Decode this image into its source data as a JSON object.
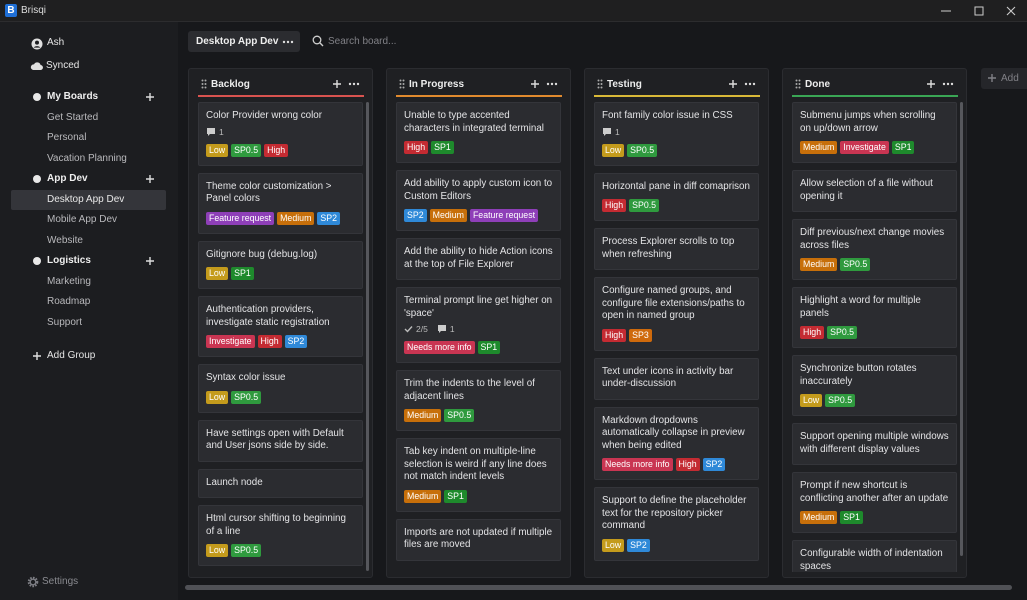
{
  "app": {
    "logo": "B",
    "title": "Brisqi"
  },
  "sidebar": {
    "user": "Ash",
    "sync": "Synced",
    "groups": [
      {
        "name": "My Boards",
        "boards": [
          {
            "label": "Get Started"
          },
          {
            "label": "Personal"
          },
          {
            "label": "Vacation Planning"
          }
        ]
      },
      {
        "name": "App Dev",
        "boards": [
          {
            "label": "Desktop App Dev",
            "active": true
          },
          {
            "label": "Mobile App Dev"
          },
          {
            "label": "Website"
          }
        ]
      },
      {
        "name": "Logistics",
        "boards": [
          {
            "label": "Marketing"
          },
          {
            "label": "Roadmap"
          },
          {
            "label": "Support"
          }
        ]
      }
    ],
    "add_group": "Add Group",
    "settings": "Settings"
  },
  "header": {
    "board": "Desktop App Dev",
    "search_placeholder": "Search board..."
  },
  "add_list": "Add",
  "columns": [
    {
      "title": "Backlog",
      "color": "#d9534f",
      "cards": [
        {
          "title": "Color Provider wrong color",
          "comments": "1",
          "tags": [
            {
              "label": "Low",
              "color": "#c49b1c"
            },
            {
              "label": "SP0.5",
              "color": "#2f9a3e"
            },
            {
              "label": "High",
              "color": "#c42b32"
            }
          ]
        },
        {
          "title": "Theme color customization > Panel colors",
          "tags": [
            {
              "label": "Feature request",
              "color": "#8e3fb8"
            },
            {
              "label": "Medium",
              "color": "#c76f0a"
            },
            {
              "label": "SP2",
              "color": "#2f89d8"
            }
          ]
        },
        {
          "title": "Gitignore bug (debug.log)",
          "tags": [
            {
              "label": "Low",
              "color": "#c49b1c"
            },
            {
              "label": "SP1",
              "color": "#1e8a2c"
            }
          ]
        },
        {
          "title": "Authentication providers, investigate static registration",
          "tags": [
            {
              "label": "Investigate",
              "color": "#c93552"
            },
            {
              "label": "High",
              "color": "#c42b32"
            },
            {
              "label": "SP2",
              "color": "#2f89d8"
            }
          ]
        },
        {
          "title": "Syntax color issue",
          "tags": [
            {
              "label": "Low",
              "color": "#c49b1c"
            },
            {
              "label": "SP0.5",
              "color": "#2f9a3e"
            }
          ]
        },
        {
          "title": "Have settings open with Default and User jsons side by side."
        },
        {
          "title": "Launch node"
        },
        {
          "title": "Html cursor shifting to beginning of a line",
          "tags": [
            {
              "label": "Low",
              "color": "#c49b1c"
            },
            {
              "label": "SP0.5",
              "color": "#2f9a3e"
            }
          ]
        }
      ]
    },
    {
      "title": "In Progress",
      "color": "#e08a2e",
      "cards": [
        {
          "title": "Unable to type accented characters in integrated terminal",
          "tags": [
            {
              "label": "High",
              "color": "#c42b32"
            },
            {
              "label": "SP1",
              "color": "#1e8a2c"
            }
          ]
        },
        {
          "title": "Add ability to apply custom icon to Custom Editors",
          "tags": [
            {
              "label": "SP2",
              "color": "#2f89d8"
            },
            {
              "label": "Medium",
              "color": "#c76f0a"
            },
            {
              "label": "Feature request",
              "color": "#8e3fb8"
            }
          ]
        },
        {
          "title": "Add the ability to hide Action icons at the top of File Explorer"
        },
        {
          "title": "Terminal prompt line get higher on 'space'",
          "checklist": "2/5",
          "comments": "1",
          "tags": [
            {
              "label": "Needs more info",
              "color": "#c93552"
            },
            {
              "label": "SP1",
              "color": "#1e8a2c"
            }
          ]
        },
        {
          "title": "Trim the indents to the level of adjacent lines",
          "tags": [
            {
              "label": "Medium",
              "color": "#c76f0a"
            },
            {
              "label": "SP0.5",
              "color": "#2f9a3e"
            }
          ]
        },
        {
          "title": "Tab key indent on multiple-line selection is weird if any line does not match indent levels",
          "tags": [
            {
              "label": "Medium",
              "color": "#c76f0a"
            },
            {
              "label": "SP1",
              "color": "#1e8a2c"
            }
          ]
        },
        {
          "title": "Imports are not updated if multiple files are moved"
        }
      ]
    },
    {
      "title": "Testing",
      "color": "#d9b938",
      "cards": [
        {
          "title": "Font family color issue in CSS",
          "comments": "1",
          "tags": [
            {
              "label": "Low",
              "color": "#c49b1c"
            },
            {
              "label": "SP0.5",
              "color": "#2f9a3e"
            }
          ]
        },
        {
          "title": "Horizontal pane in diff comaprison",
          "tags": [
            {
              "label": "High",
              "color": "#c42b32"
            },
            {
              "label": "SP0.5",
              "color": "#2f9a3e"
            }
          ]
        },
        {
          "title": "Process Explorer scrolls to top when refreshing"
        },
        {
          "title": "Configure named groups, and configure file extensions/paths to open in named group",
          "tags": [
            {
              "label": "High",
              "color": "#c42b32"
            },
            {
              "label": "SP3",
              "color": "#cf6a0c"
            }
          ]
        },
        {
          "title": "Text under icons in activity bar under-discussion"
        },
        {
          "title": "Markdown dropdowns automatically collapse in preview when being edited",
          "tags": [
            {
              "label": "Needs more info",
              "color": "#c93552"
            },
            {
              "label": "High",
              "color": "#c42b32"
            },
            {
              "label": "SP2",
              "color": "#2f89d8"
            }
          ]
        },
        {
          "title": "Support to define the placeholder text for the repository picker command",
          "tags": [
            {
              "label": "Low",
              "color": "#c49b1c"
            },
            {
              "label": "SP2",
              "color": "#2f89d8"
            }
          ]
        }
      ]
    },
    {
      "title": "Done",
      "color": "#3aa655",
      "cards": [
        {
          "title": "Submenu jumps when scrolling on up/down arrow",
          "tags": [
            {
              "label": "Medium",
              "color": "#c76f0a"
            },
            {
              "label": "Investigate",
              "color": "#c93552"
            },
            {
              "label": "SP1",
              "color": "#1e8a2c"
            }
          ]
        },
        {
          "title": "Allow selection of a file without opening it"
        },
        {
          "title": "Diff previous/next change movies across files",
          "tags": [
            {
              "label": "Medium",
              "color": "#c76f0a"
            },
            {
              "label": "SP0.5",
              "color": "#2f9a3e"
            }
          ]
        },
        {
          "title": "Highlight a word for multiple panels",
          "tags": [
            {
              "label": "High",
              "color": "#c42b32"
            },
            {
              "label": "SP0.5",
              "color": "#2f9a3e"
            }
          ]
        },
        {
          "title": "Synchronize button rotates inaccurately",
          "tags": [
            {
              "label": "Low",
              "color": "#c49b1c"
            },
            {
              "label": "SP0.5",
              "color": "#2f9a3e"
            }
          ]
        },
        {
          "title": "Support opening multiple windows with different display values"
        },
        {
          "title": "Prompt if new shortcut is conflicting another after an update",
          "tags": [
            {
              "label": "Medium",
              "color": "#c76f0a"
            },
            {
              "label": "SP1",
              "color": "#1e8a2c"
            }
          ]
        },
        {
          "title": "Configurable width of indentation spaces"
        }
      ]
    }
  ]
}
